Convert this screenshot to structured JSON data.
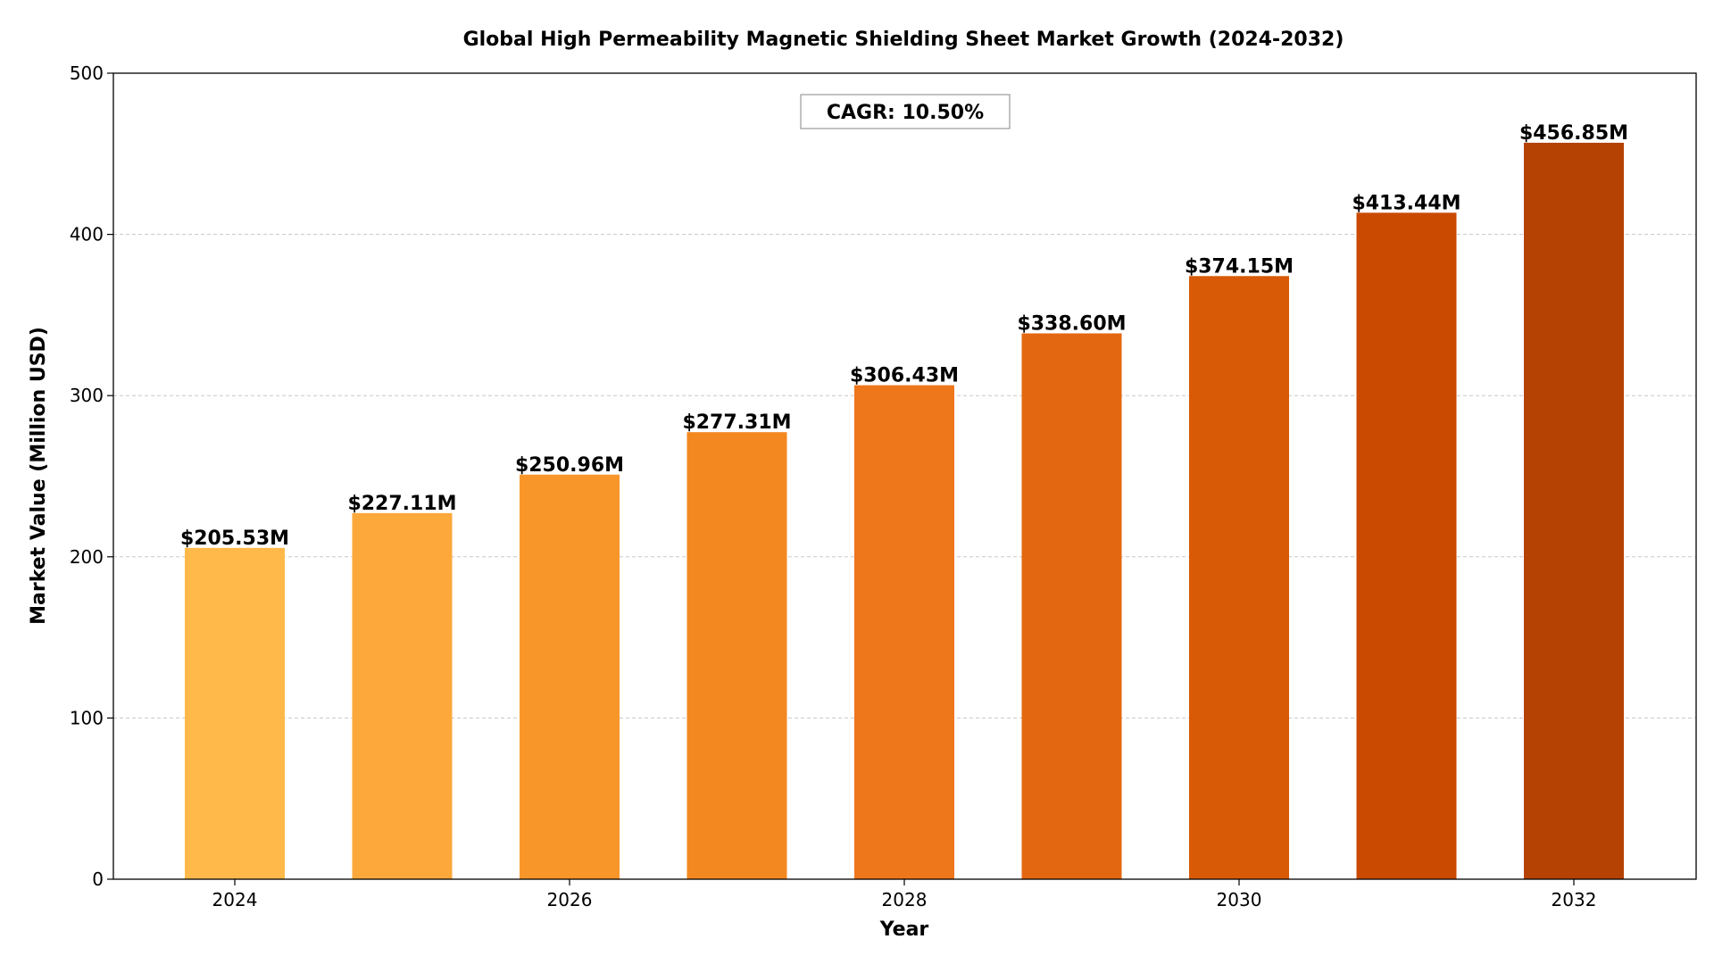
{
  "chart_data": {
    "type": "bar",
    "title": "Global High Permeability Magnetic Shielding Sheet Market Growth (2024-2032)",
    "xlabel": "Year",
    "ylabel": "Market Value (Million USD)",
    "categories": [
      "2024",
      "2025",
      "2026",
      "2027",
      "2028",
      "2029",
      "2030",
      "2031",
      "2032"
    ],
    "values": [
      205.53,
      227.11,
      250.96,
      277.31,
      306.43,
      338.6,
      374.15,
      413.44,
      456.85
    ],
    "data_labels": [
      "$205.53M",
      "$227.11M",
      "$250.96M",
      "$277.31M",
      "$306.43M",
      "$338.60M",
      "$374.15M",
      "$413.44M",
      "$456.85M"
    ],
    "x_ticks": [
      "2024",
      "2026",
      "2028",
      "2030",
      "2032"
    ],
    "y_ticks": [
      "0",
      "100",
      "200",
      "300",
      "400",
      "500"
    ],
    "ylim": [
      0,
      500
    ],
    "grid": "y-dashed",
    "annotation": "CAGR: 10.50%",
    "bar_colors": [
      "#FEB94A",
      "#FDA83B",
      "#F9962A",
      "#F48820",
      "#EE761B",
      "#E36711",
      "#D85906",
      "#CA4A01",
      "#B54203"
    ],
    "colors": {
      "grid": "#c8c8c8",
      "axis": "#000000",
      "annotation_border": "#999999"
    }
  }
}
